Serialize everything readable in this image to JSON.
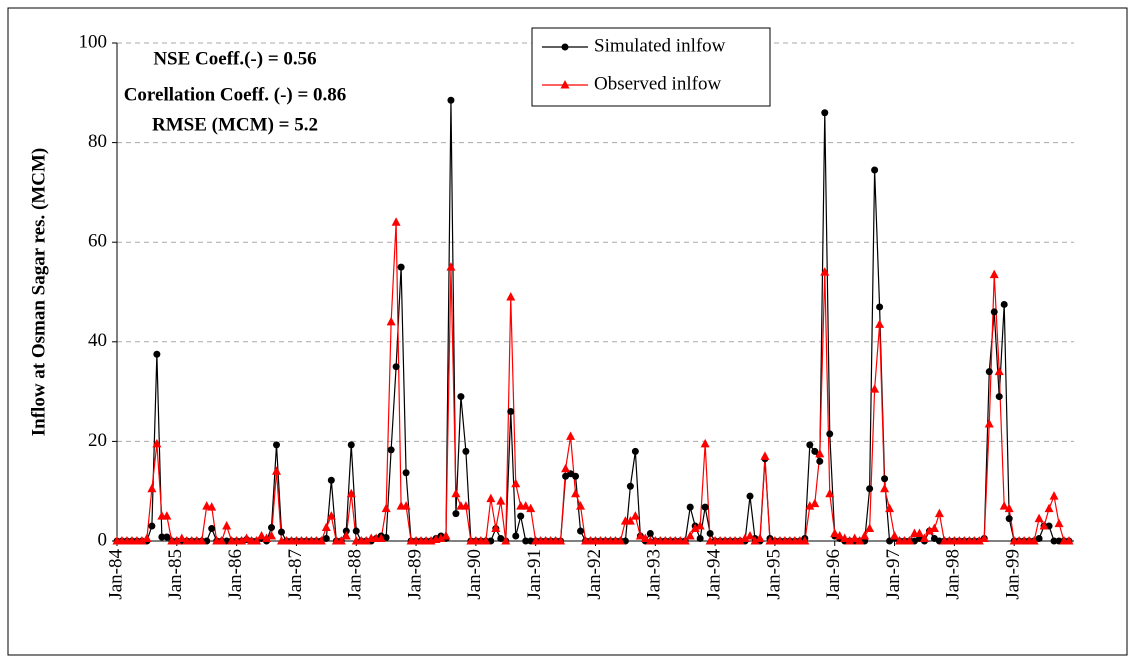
{
  "chart_data": {
    "type": "line",
    "y_label": "Inflow at Osman Sagar res. (MCM)",
    "annotations": [
      "NSE Coeff.(-) = 0.56",
      "Corellation Coeff. (-) = 0.86",
      "RMSE (MCM) = 5.2"
    ],
    "legend": "top",
    "grid": true,
    "ylim": [
      0,
      100
    ],
    "yticks": [
      0,
      20,
      40,
      60,
      80,
      100
    ],
    "categories": [
      "Jan-84",
      null,
      null,
      null,
      null,
      null,
      null,
      null,
      null,
      null,
      null,
      null,
      "Jan-85",
      null,
      null,
      null,
      null,
      null,
      null,
      null,
      null,
      null,
      null,
      null,
      "Jan-86",
      null,
      null,
      null,
      null,
      null,
      null,
      null,
      null,
      null,
      null,
      null,
      "Jan-87",
      null,
      null,
      null,
      null,
      null,
      null,
      null,
      null,
      null,
      null,
      null,
      "Jan-88",
      null,
      null,
      null,
      null,
      null,
      null,
      null,
      null,
      null,
      null,
      null,
      "Jan-89",
      null,
      null,
      null,
      null,
      null,
      null,
      null,
      null,
      null,
      null,
      null,
      "Jan-90",
      null,
      null,
      null,
      null,
      null,
      null,
      null,
      null,
      null,
      null,
      null,
      "Jan-91",
      null,
      null,
      null,
      null,
      null,
      null,
      null,
      null,
      null,
      null,
      null,
      "Jan-92",
      null,
      null,
      null,
      null,
      null,
      null,
      null,
      null,
      null,
      null,
      null,
      "Jan-93",
      null,
      null,
      null,
      null,
      null,
      null,
      null,
      null,
      null,
      null,
      null,
      "Jan-94",
      null,
      null,
      null,
      null,
      null,
      null,
      null,
      null,
      null,
      null,
      null,
      "Jan-95",
      null,
      null,
      null,
      null,
      null,
      null,
      null,
      null,
      null,
      null,
      null,
      "Jan-96",
      null,
      null,
      null,
      null,
      null,
      null,
      null,
      null,
      null,
      null,
      null,
      "Jan-97",
      null,
      null,
      null,
      null,
      null,
      null,
      null,
      null,
      null,
      null,
      null,
      "Jan-98",
      null,
      null,
      null,
      null,
      null,
      null,
      null,
      null,
      null,
      null,
      null,
      "Jan-99",
      null,
      null,
      null,
      null,
      null,
      null,
      null,
      null,
      null,
      null,
      null
    ],
    "series": [
      {
        "name": "Simulated inlfow",
        "color": "#000000",
        "marker": "circle",
        "values": [
          0,
          0,
          0,
          0,
          0,
          0,
          0,
          3,
          37.5,
          0.8,
          0.8,
          0,
          0,
          0,
          0,
          0,
          0,
          0,
          0,
          2.5,
          0,
          0,
          0,
          0,
          0,
          0,
          0.3,
          0,
          0,
          0.5,
          0,
          2.7,
          19.3,
          1.8,
          0,
          0,
          0,
          0,
          0,
          0,
          0,
          0,
          0.5,
          12.2,
          0,
          0,
          2,
          19.3,
          2,
          0,
          0,
          0,
          0.5,
          1,
          0.7,
          18.3,
          35,
          55,
          13.7,
          0,
          0,
          0,
          0,
          0,
          0.5,
          1,
          0.5,
          88.5,
          5.5,
          29,
          18,
          0,
          0,
          0,
          0,
          0,
          2.5,
          0.5,
          0,
          26,
          1,
          5,
          0,
          0,
          0,
          0,
          0,
          0,
          0,
          0,
          13,
          13.5,
          13,
          2,
          0,
          0,
          0,
          0,
          0,
          0,
          0,
          0,
          0,
          11,
          18,
          1,
          0,
          1.5,
          0,
          0,
          0,
          0,
          0,
          0,
          0,
          6.8,
          3,
          0.5,
          6.8,
          1.5,
          0,
          0,
          0,
          0,
          0,
          0,
          0,
          9,
          0.5,
          0,
          16.5,
          0.5,
          0,
          0,
          0,
          0,
          0,
          0,
          0.5,
          19.3,
          18,
          16,
          86,
          21.5,
          1,
          0.5,
          0,
          0,
          0,
          0,
          0,
          10.5,
          74.5,
          47,
          12.5,
          0,
          0.5,
          0,
          0,
          0,
          0,
          0.5,
          0,
          2,
          0.5,
          0,
          0,
          0,
          0,
          0,
          0,
          0,
          0,
          0,
          0.5,
          34,
          46,
          29,
          47.5,
          4.5,
          0,
          0,
          0,
          0,
          0,
          0.5,
          3,
          3,
          0,
          0,
          0,
          0
        ]
      },
      {
        "name": "Observed inlfow",
        "color": "#ff0000",
        "marker": "triangle",
        "values": [
          0,
          0,
          0,
          0,
          0,
          0,
          0.5,
          10.5,
          19.5,
          5,
          5,
          0,
          0,
          0.5,
          0,
          0,
          0,
          0,
          7,
          6.8,
          0,
          0,
          3,
          0,
          0,
          0,
          0.5,
          0,
          0,
          1,
          0.5,
          1,
          14,
          0,
          0,
          0,
          0,
          0,
          0,
          0,
          0,
          0,
          2.7,
          5,
          0,
          0,
          1,
          9.5,
          0,
          0,
          0,
          0.5,
          0.5,
          0.5,
          6.5,
          44,
          64,
          7,
          7,
          0,
          0,
          0,
          0,
          0,
          0.3,
          0.5,
          1,
          55,
          9.5,
          7,
          7,
          0,
          0,
          0,
          0,
          8.5,
          2.5,
          8,
          0,
          49,
          11.5,
          7,
          7,
          6.5,
          0,
          0,
          0,
          0,
          0,
          0,
          14.5,
          21,
          9.5,
          7,
          0,
          0,
          0,
          0,
          0,
          0,
          0,
          0,
          4,
          4,
          5,
          1,
          0.5,
          0,
          0,
          0,
          0,
          0,
          0,
          0,
          0,
          1,
          2.5,
          3,
          19.5,
          0,
          0,
          0,
          0,
          0,
          0,
          0,
          0.5,
          1,
          0,
          0.5,
          17,
          0,
          0,
          0,
          0,
          0,
          0,
          0,
          0,
          7,
          7.5,
          17.5,
          54,
          9.5,
          1.5,
          1,
          0.5,
          0,
          0.5,
          0,
          1,
          2.5,
          30.5,
          43.5,
          10.5,
          6.5,
          1,
          0,
          0,
          0,
          1.5,
          1.5,
          0.5,
          2,
          2.5,
          5.5,
          0,
          0,
          0,
          0,
          0,
          0,
          0,
          0,
          0.5,
          23.5,
          53.5,
          34,
          7,
          6.5,
          0,
          0,
          0,
          0,
          0,
          4.5,
          3,
          6.5,
          9,
          3.5,
          0,
          0
        ]
      }
    ]
  }
}
